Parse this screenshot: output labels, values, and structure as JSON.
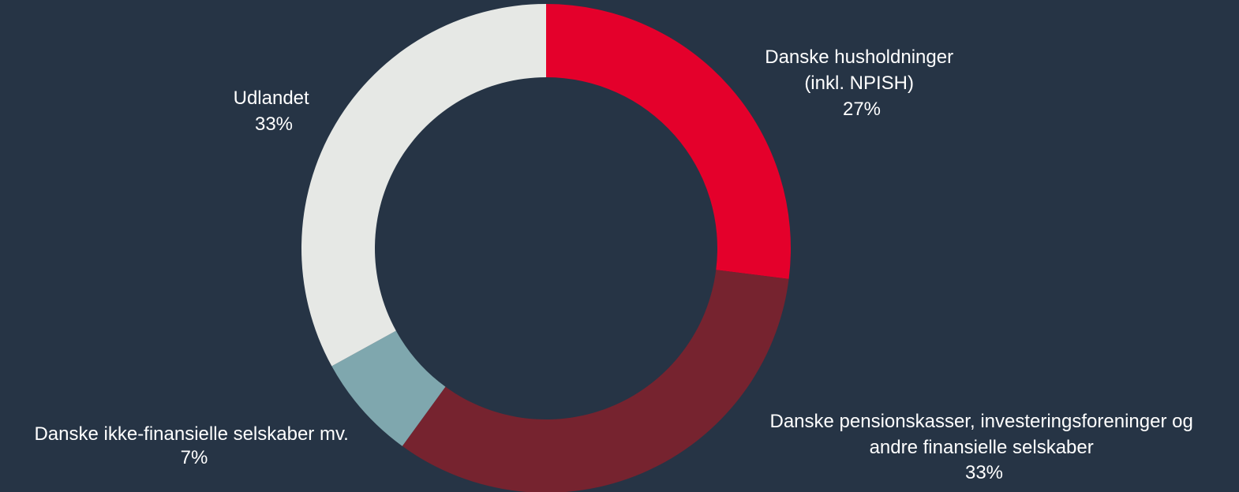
{
  "chart_data": {
    "type": "pie",
    "style": "donut",
    "title": "",
    "background": "#263445",
    "slices": [
      {
        "label_lines": [
          "Danske husholdninger",
          "(inkl. NPISH)"
        ],
        "value": 27,
        "value_label": "27%",
        "color": "#E4002B"
      },
      {
        "label_lines": [
          "Danske pensionskasser, investeringsforeninger og",
          "andre finansielle selskaber"
        ],
        "value": 33,
        "value_label": "33%",
        "color": "#76232F"
      },
      {
        "label_lines": [
          "Danske ikke-finansielle selskaber mv."
        ],
        "value": 7,
        "value_label": "7%",
        "color": "#7FA7AE"
      },
      {
        "label_lines": [
          "Udlandet"
        ],
        "value": 33,
        "value_label": "33%",
        "color": "#E6E8E5"
      }
    ]
  }
}
